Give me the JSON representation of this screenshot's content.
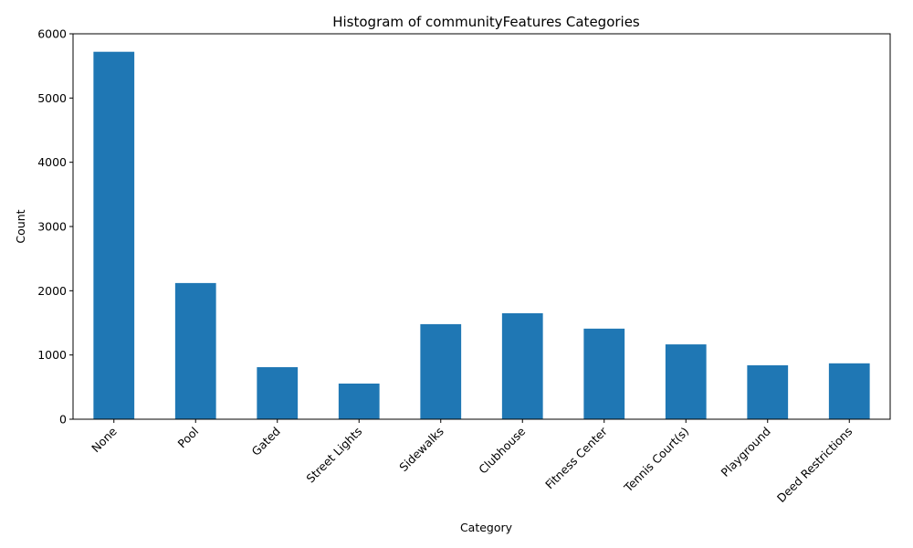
{
  "chart_data": {
    "type": "bar",
    "title": "Histogram of communityFeatures Categories",
    "xlabel": "Category",
    "ylabel": "Count",
    "categories": [
      "None",
      "Pool",
      "Gated",
      "Street Lights",
      "Sidewalks",
      "Clubhouse",
      "Fitness Center",
      "Tennis Court(s)",
      "Playground",
      "Deed Restrictions"
    ],
    "values": [
      5720,
      2120,
      810,
      555,
      1480,
      1650,
      1410,
      1165,
      840,
      870
    ],
    "ylim": [
      0,
      6000
    ],
    "yticks": [
      0,
      1000,
      2000,
      3000,
      4000,
      5000,
      6000
    ],
    "bar_color": "#1f77b4",
    "grid": false,
    "legend": false
  }
}
